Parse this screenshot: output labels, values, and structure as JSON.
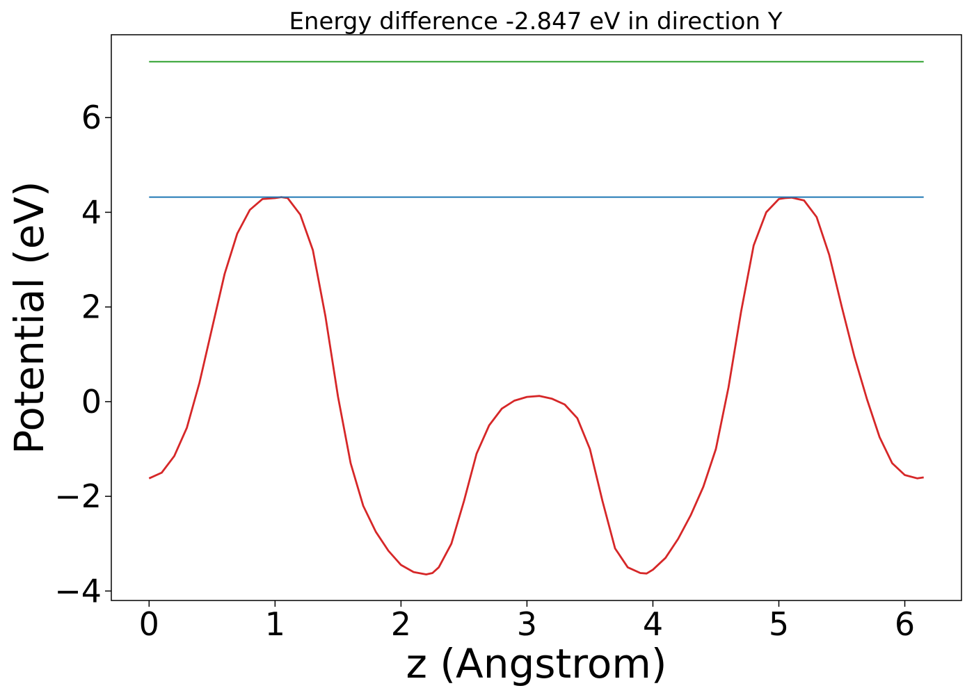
{
  "chart_data": {
    "type": "line",
    "title": "Energy difference -2.847 eV in direction Y",
    "xlabel": "z (Angstrom)",
    "ylabel": "Potential (eV)",
    "xlim": [
      -0.3,
      6.45
    ],
    "ylim": [
      -4.2,
      7.75
    ],
    "xticks": [
      0,
      1,
      2,
      3,
      4,
      5,
      6
    ],
    "yticks": [
      -4,
      -2,
      0,
      2,
      4,
      6
    ],
    "xtick_labels": [
      "0",
      "1",
      "2",
      "3",
      "4",
      "5",
      "6"
    ],
    "ytick_labels": [
      "−4",
      "−2",
      "0",
      "2",
      "4",
      "6"
    ],
    "grid": false,
    "series": [
      {
        "color": "#d62728",
        "x": [
          0,
          0.1,
          0.2,
          0.3,
          0.4,
          0.5,
          0.6,
          0.7,
          0.8,
          0.9,
          1.0,
          1.05,
          1.1,
          1.2,
          1.3,
          1.4,
          1.5,
          1.6,
          1.7,
          1.8,
          1.9,
          2.0,
          2.1,
          2.2,
          2.25,
          2.3,
          2.4,
          2.5,
          2.6,
          2.7,
          2.8,
          2.9,
          3.0,
          3.1,
          3.2,
          3.3,
          3.4,
          3.5,
          3.6,
          3.7,
          3.8,
          3.9,
          3.95,
          4.0,
          4.1,
          4.2,
          4.3,
          4.4,
          4.5,
          4.6,
          4.7,
          4.8,
          4.9,
          5.0,
          5.05,
          5.1,
          5.2,
          5.3,
          5.4,
          5.5,
          5.6,
          5.7,
          5.8,
          5.9,
          6.0,
          6.1,
          6.15
        ],
        "y": [
          -1.62,
          -1.5,
          -1.15,
          -0.55,
          0.4,
          1.55,
          2.7,
          3.55,
          4.05,
          4.28,
          4.3,
          4.32,
          4.3,
          3.95,
          3.2,
          1.8,
          0.1,
          -1.3,
          -2.2,
          -2.75,
          -3.15,
          -3.45,
          -3.6,
          -3.65,
          -3.62,
          -3.5,
          -3.0,
          -2.1,
          -1.1,
          -0.5,
          -0.15,
          0.02,
          0.1,
          0.12,
          0.06,
          -0.06,
          -0.35,
          -1.0,
          -2.1,
          -3.1,
          -3.5,
          -3.62,
          -3.63,
          -3.55,
          -3.3,
          -2.9,
          -2.4,
          -1.8,
          -1.0,
          0.3,
          1.9,
          3.3,
          4.0,
          4.28,
          4.3,
          4.31,
          4.25,
          3.9,
          3.1,
          2.0,
          0.95,
          0.05,
          -0.75,
          -1.3,
          -1.55,
          -1.62,
          -1.6
        ]
      },
      {
        "color": "#1f77b4",
        "x": [
          0,
          6.15
        ],
        "y": [
          4.32,
          4.32
        ]
      },
      {
        "color": "#2ca02c",
        "x": [
          0,
          6.15
        ],
        "y": [
          7.18,
          7.18
        ]
      }
    ]
  }
}
